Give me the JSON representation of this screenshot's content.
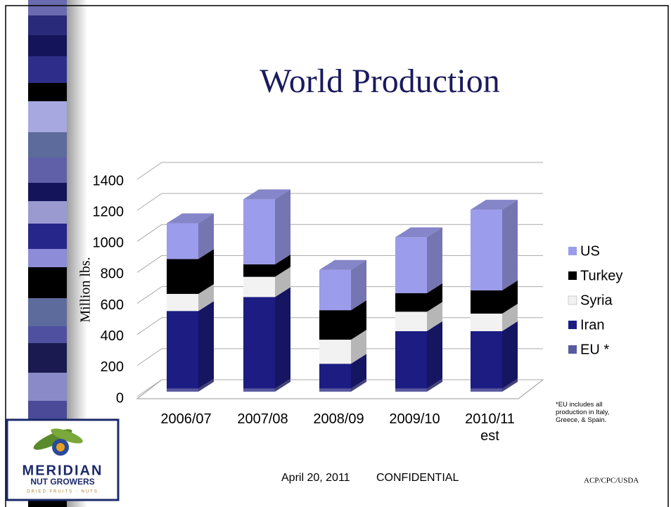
{
  "title": "World Production",
  "chart_data": {
    "type": "stacked-bar-3d",
    "y_label": "Million lbs.",
    "categories": [
      "2006/07",
      "2007/08",
      "2008/09",
      "2009/10",
      "2010/11 est"
    ],
    "series": [
      {
        "name": "EU *",
        "color": "#5a5aa0",
        "values": [
          20,
          20,
          20,
          20,
          20
        ]
      },
      {
        "name": "Iran",
        "color": "#1c1c82",
        "values": [
          500,
          590,
          160,
          370,
          370
        ]
      },
      {
        "name": "Syria",
        "color": "#f2f2f2",
        "values": [
          110,
          130,
          155,
          125,
          113
        ]
      },
      {
        "name": "Turkey",
        "color": "#000000",
        "values": [
          225,
          80,
          190,
          120,
          150
        ]
      },
      {
        "name": "US",
        "color": "#9c9cec",
        "values": [
          230,
          420,
          260,
          360,
          520
        ]
      }
    ],
    "ylim": [
      0,
      1400
    ],
    "yticks": [
      0,
      200,
      400,
      600,
      800,
      1000,
      1200,
      1400
    ],
    "grid": true
  },
  "footnote": "*EU includes all production in Italy, Greece, & Spain.",
  "footer": {
    "date": "April 20, 2011",
    "label": "CONFIDENTIAL",
    "source": "ACP/CPC/USDA"
  },
  "logo": {
    "name": "MERIDIAN",
    "sub": "NUT GROWERS",
    "tag": "DRIED FRUITS - NUTS"
  }
}
